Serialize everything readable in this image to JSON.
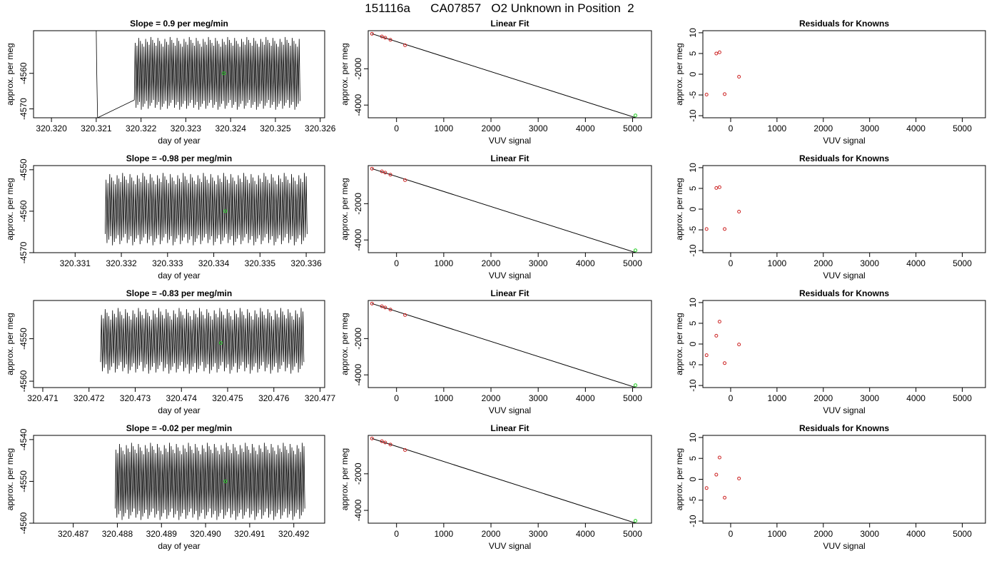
{
  "figure": {
    "title": "151116a      CA07857   O2 Unknown in Position  2"
  },
  "colors": {
    "known_point": "#cc2222",
    "unknown_point": "#22cc22",
    "line": "#000000"
  },
  "chart_data": [
    {
      "type": "line",
      "row": 0,
      "title": "Slope =  0.9  per meg/min",
      "xlabel": "day of year",
      "ylabel": "approx. per meg",
      "xlim": [
        320.3196,
        320.3261
      ],
      "ylim": [
        -4572.5,
        -4548
      ],
      "xticks": [
        "320.320",
        "320.321",
        "320.322",
        "320.323",
        "320.324",
        "320.325",
        "320.326"
      ],
      "xtick_values": [
        320.32,
        320.321,
        320.322,
        320.323,
        320.324,
        320.325,
        320.326
      ],
      "yticks": [
        "-4570",
        "-4560"
      ],
      "ytick_values": [
        -4570,
        -4560
      ],
      "trace": {
        "start": 320.32185,
        "end": 320.32555,
        "low": -4569,
        "high": -4551,
        "n_cycles": 95
      },
      "trace_prefix": [
        [
          320.321,
          -4548
        ],
        [
          320.32101,
          -4559
        ],
        [
          320.32103,
          -4572.5
        ]
      ],
      "unknown_point": [
        320.32385,
        -4560
      ]
    },
    {
      "type": "line",
      "row": 1,
      "title": "Slope =  -0.98  per meg/min",
      "xlabel": "day of year",
      "ylabel": "approx. per meg",
      "xlim": [
        320.3301,
        320.3364
      ],
      "ylim": [
        -4570,
        -4549
      ],
      "xticks": [
        "320.331",
        "320.332",
        "320.333",
        "320.334",
        "320.335",
        "320.336"
      ],
      "xtick_values": [
        320.331,
        320.332,
        320.333,
        320.334,
        320.335,
        320.336
      ],
      "yticks": [
        "-4570",
        "-4560",
        "-4550"
      ],
      "ytick_values": [
        -4570,
        -4560,
        -4550
      ],
      "trace": {
        "start": 320.33165,
        "end": 320.33602,
        "low": -4567,
        "high": -4552,
        "n_cycles": 110
      },
      "unknown_point": [
        320.33425,
        -4560
      ]
    },
    {
      "type": "line",
      "row": 2,
      "title": "Slope =  -0.83  per meg/min",
      "xlabel": "day of year",
      "ylabel": "approx. per meg",
      "xlim": [
        320.4708,
        320.4771
      ],
      "ylim": [
        -4561.5,
        -4541
      ],
      "xticks": [
        "320.471",
        "320.472",
        "320.473",
        "320.474",
        "320.475",
        "320.476",
        "320.477"
      ],
      "xtick_values": [
        320.471,
        320.472,
        320.473,
        320.474,
        320.475,
        320.476,
        320.477
      ],
      "yticks": [
        "-4560",
        "-4550"
      ],
      "ytick_values": [
        -4560,
        -4550
      ],
      "trace": {
        "start": 320.47225,
        "end": 320.47665,
        "low": -4557,
        "high": -4544,
        "n_cycles": 110
      },
      "unknown_point": [
        320.47485,
        -4551
      ]
    },
    {
      "type": "line",
      "row": 3,
      "title": "Slope =  -0.02  per meg/min",
      "xlabel": "day of year",
      "ylabel": "approx. per meg",
      "xlim": [
        320.4861,
        320.4927
      ],
      "ylim": [
        -4560,
        -4539
      ],
      "xticks": [
        "320.487",
        "320.488",
        "320.489",
        "320.490",
        "320.491",
        "320.492"
      ],
      "xtick_values": [
        320.487,
        320.488,
        320.489,
        320.49,
        320.491,
        320.492
      ],
      "yticks": [
        "-4560",
        "-4550",
        "-4540"
      ],
      "ytick_values": [
        -4560,
        -4550,
        -4540
      ],
      "trace": {
        "start": 320.48795,
        "end": 320.49225,
        "low": -4558,
        "high": -4542,
        "n_cycles": 110
      },
      "unknown_point": [
        320.49045,
        -4550
      ]
    },
    {
      "type": "scatter",
      "row": 0,
      "title": "Linear Fit",
      "xlabel": "VUV signal",
      "ylabel": "approx. per meg",
      "xlim": [
        -600,
        5400
      ],
      "ylim": [
        -4700,
        100
      ],
      "xticks": [
        "0",
        "1000",
        "2000",
        "3000",
        "4000",
        "5000"
      ],
      "xtick_values": [
        0,
        1000,
        2000,
        3000,
        4000,
        5000
      ],
      "yticks": [
        "-4000",
        "-2000"
      ],
      "ytick_values": [
        -4000,
        -2000
      ],
      "knowns": [
        [
          -520,
          -70
        ],
        [
          -310,
          -220
        ],
        [
          -240,
          -290
        ],
        [
          -130,
          -400
        ],
        [
          180,
          -700
        ]
      ],
      "unknown": [
        5060,
        -4570
      ],
      "fit_line": [
        [
          -520,
          -70
        ],
        [
          5300,
          -4890
        ]
      ]
    },
    {
      "type": "scatter",
      "row": 1,
      "title": "Linear Fit",
      "xlabel": "VUV signal",
      "ylabel": "approx. per meg",
      "xlim": [
        -600,
        5400
      ],
      "ylim": [
        -4700,
        100
      ],
      "xticks": [
        "0",
        "1000",
        "2000",
        "3000",
        "4000",
        "5000"
      ],
      "xtick_values": [
        0,
        1000,
        2000,
        3000,
        4000,
        5000
      ],
      "yticks": [
        "-4000",
        "-2000"
      ],
      "ytick_values": [
        -4000,
        -2000
      ],
      "knowns": [
        [
          -520,
          -70
        ],
        [
          -310,
          -220
        ],
        [
          -240,
          -290
        ],
        [
          -130,
          -400
        ],
        [
          180,
          -700
        ]
      ],
      "unknown": [
        5060,
        -4570
      ],
      "fit_line": [
        [
          -520,
          -70
        ],
        [
          5300,
          -4890
        ]
      ]
    },
    {
      "type": "scatter",
      "row": 2,
      "title": "Linear Fit",
      "xlabel": "VUV signal",
      "ylabel": "approx. per meg",
      "xlim": [
        -600,
        5400
      ],
      "ylim": [
        -4700,
        100
      ],
      "xticks": [
        "0",
        "1000",
        "2000",
        "3000",
        "4000",
        "5000"
      ],
      "xtick_values": [
        0,
        1000,
        2000,
        3000,
        4000,
        5000
      ],
      "yticks": [
        "-4000",
        "-2000"
      ],
      "ytick_values": [
        -4000,
        -2000
      ],
      "knowns": [
        [
          -520,
          -70
        ],
        [
          -310,
          -220
        ],
        [
          -240,
          -290
        ],
        [
          -130,
          -400
        ],
        [
          180,
          -700
        ]
      ],
      "unknown": [
        5060,
        -4570
      ],
      "fit_line": [
        [
          -520,
          -70
        ],
        [
          5300,
          -4890
        ]
      ]
    },
    {
      "type": "scatter",
      "row": 3,
      "title": "Linear Fit",
      "xlabel": "VUV signal",
      "ylabel": "approx. per meg",
      "xlim": [
        -600,
        5400
      ],
      "ylim": [
        -4700,
        100
      ],
      "xticks": [
        "0",
        "1000",
        "2000",
        "3000",
        "4000",
        "5000"
      ],
      "xtick_values": [
        0,
        1000,
        2000,
        3000,
        4000,
        5000
      ],
      "yticks": [
        "-4000",
        "-2000"
      ],
      "ytick_values": [
        -4000,
        -2000
      ],
      "knowns": [
        [
          -520,
          -70
        ],
        [
          -310,
          -220
        ],
        [
          -240,
          -290
        ],
        [
          -130,
          -400
        ],
        [
          180,
          -700
        ]
      ],
      "unknown": [
        5060,
        -4570
      ],
      "fit_line": [
        [
          -520,
          -70
        ],
        [
          5300,
          -4890
        ]
      ]
    },
    {
      "type": "scatter",
      "row": 0,
      "title": "Residuals for Knowns",
      "xlabel": "VUV signal",
      "ylabel": "approx. per meg",
      "xlim": [
        -600,
        5500
      ],
      "ylim": [
        -10.5,
        10.5
      ],
      "xticks": [
        "0",
        "1000",
        "2000",
        "3000",
        "4000",
        "5000"
      ],
      "xtick_values": [
        0,
        1000,
        2000,
        3000,
        4000,
        5000
      ],
      "yticks": [
        "-10",
        "-5",
        "0",
        "5",
        "10"
      ],
      "ytick_values": [
        -10,
        -5,
        0,
        5,
        10
      ],
      "residuals": [
        [
          -520,
          -4.9
        ],
        [
          -310,
          5.0
        ],
        [
          -240,
          5.3
        ],
        [
          -130,
          -4.8
        ],
        [
          180,
          -0.6
        ]
      ]
    },
    {
      "type": "scatter",
      "row": 1,
      "title": "Residuals for Knowns",
      "xlabel": "VUV signal",
      "ylabel": "approx. per meg",
      "xlim": [
        -600,
        5500
      ],
      "ylim": [
        -10.5,
        10.5
      ],
      "xticks": [
        "0",
        "1000",
        "2000",
        "3000",
        "4000",
        "5000"
      ],
      "xtick_values": [
        0,
        1000,
        2000,
        3000,
        4000,
        5000
      ],
      "yticks": [
        "-10",
        "-5",
        "0",
        "5",
        "10"
      ],
      "ytick_values": [
        -10,
        -5,
        0,
        5,
        10
      ],
      "residuals": [
        [
          -520,
          -4.8
        ],
        [
          -310,
          5.1
        ],
        [
          -240,
          5.3
        ],
        [
          -130,
          -4.8
        ],
        [
          180,
          -0.6
        ]
      ]
    },
    {
      "type": "scatter",
      "row": 2,
      "title": "Residuals for Knowns",
      "xlabel": "VUV signal",
      "ylabel": "approx. per meg",
      "xlim": [
        -600,
        5500
      ],
      "ylim": [
        -10.5,
        10.5
      ],
      "xticks": [
        "0",
        "1000",
        "2000",
        "3000",
        "4000",
        "5000"
      ],
      "xtick_values": [
        0,
        1000,
        2000,
        3000,
        4000,
        5000
      ],
      "yticks": [
        "-10",
        "-5",
        "0",
        "5",
        "10"
      ],
      "ytick_values": [
        -10,
        -5,
        0,
        5,
        10
      ],
      "residuals": [
        [
          -520,
          -2.7
        ],
        [
          -310,
          2.0
        ],
        [
          -240,
          5.4
        ],
        [
          -130,
          -4.6
        ],
        [
          180,
          -0.1
        ]
      ]
    },
    {
      "type": "scatter",
      "row": 3,
      "title": "Residuals for Knowns",
      "xlabel": "VUV signal",
      "ylabel": "approx. per meg",
      "xlim": [
        -600,
        5500
      ],
      "ylim": [
        -10.5,
        10.5
      ],
      "xticks": [
        "0",
        "1000",
        "2000",
        "3000",
        "4000",
        "5000"
      ],
      "xtick_values": [
        0,
        1000,
        2000,
        3000,
        4000,
        5000
      ],
      "yticks": [
        "-10",
        "-5",
        "0",
        "5",
        "10"
      ],
      "ytick_values": [
        -10,
        -5,
        0,
        5,
        10
      ],
      "residuals": [
        [
          -520,
          -2.1
        ],
        [
          -310,
          1.1
        ],
        [
          -240,
          5.2
        ],
        [
          -130,
          -4.4
        ],
        [
          180,
          0.2
        ]
      ]
    }
  ]
}
